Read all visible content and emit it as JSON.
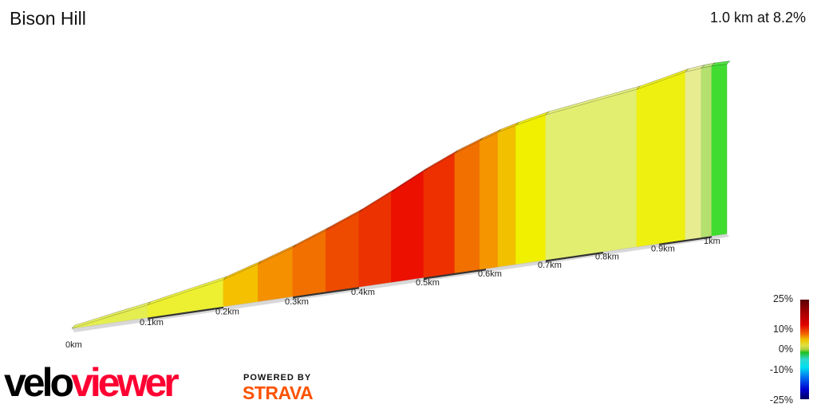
{
  "header": {
    "title": "Bison Hill",
    "summary": "1.0 km at 8.2%"
  },
  "chart_data": {
    "type": "area",
    "title": "Bison Hill",
    "xlabel": "",
    "ylabel": "",
    "x_unit": "km",
    "tick_labels": [
      "0km",
      "0.1km",
      "0.2km",
      "0.3km",
      "0.4km",
      "0.5km",
      "0.6km",
      "0.7km",
      "0.8km",
      "0.9km",
      "1km"
    ],
    "distance_km": 1.0,
    "average_gradient_pct": 8.2,
    "segments": [
      {
        "start_km": 0.0,
        "end_km": 0.1,
        "gradient_pct": 5,
        "color": "#e4ee50"
      },
      {
        "start_km": 0.1,
        "end_km": 0.2,
        "gradient_pct": 6,
        "color": "#ecf030"
      },
      {
        "start_km": 0.2,
        "end_km": 0.25,
        "gradient_pct": 9,
        "color": "#f5c000"
      },
      {
        "start_km": 0.25,
        "end_km": 0.3,
        "gradient_pct": 10,
        "color": "#f59000"
      },
      {
        "start_km": 0.3,
        "end_km": 0.35,
        "gradient_pct": 11,
        "color": "#f27000"
      },
      {
        "start_km": 0.35,
        "end_km": 0.4,
        "gradient_pct": 12,
        "color": "#ee4a00"
      },
      {
        "start_km": 0.4,
        "end_km": 0.45,
        "gradient_pct": 14,
        "color": "#ec3200"
      },
      {
        "start_km": 0.45,
        "end_km": 0.5,
        "gradient_pct": 15,
        "color": "#ec1000"
      },
      {
        "start_km": 0.5,
        "end_km": 0.55,
        "gradient_pct": 13,
        "color": "#ee3000"
      },
      {
        "start_km": 0.55,
        "end_km": 0.59,
        "gradient_pct": 11,
        "color": "#f27000"
      },
      {
        "start_km": 0.59,
        "end_km": 0.62,
        "gradient_pct": 10,
        "color": "#f59500"
      },
      {
        "start_km": 0.62,
        "end_km": 0.65,
        "gradient_pct": 8,
        "color": "#f3c000"
      },
      {
        "start_km": 0.65,
        "end_km": 0.7,
        "gradient_pct": 7,
        "color": "#f0f000"
      },
      {
        "start_km": 0.7,
        "end_km": 0.86,
        "gradient_pct": 5,
        "color": "#e2ee70"
      },
      {
        "start_km": 0.86,
        "end_km": 0.95,
        "gradient_pct": 7,
        "color": "#eef010"
      },
      {
        "start_km": 0.95,
        "end_km": 0.98,
        "gradient_pct": 4,
        "color": "#e8ec90"
      },
      {
        "start_km": 0.98,
        "end_km": 1.0,
        "gradient_pct": 3,
        "color": "#b4e070"
      },
      {
        "start_km": 1.0,
        "end_km": 1.03,
        "gradient_pct": 1,
        "color": "#40dd30"
      }
    ],
    "legend": {
      "labels": [
        "25%",
        "10%",
        "0%",
        "-10%",
        "-25%"
      ],
      "placement": "bottom-right"
    }
  },
  "branding": {
    "logo_part1": "velo",
    "logo_part2": "viewer",
    "powered_by": "POWERED BY",
    "strava": "STRAVA"
  }
}
